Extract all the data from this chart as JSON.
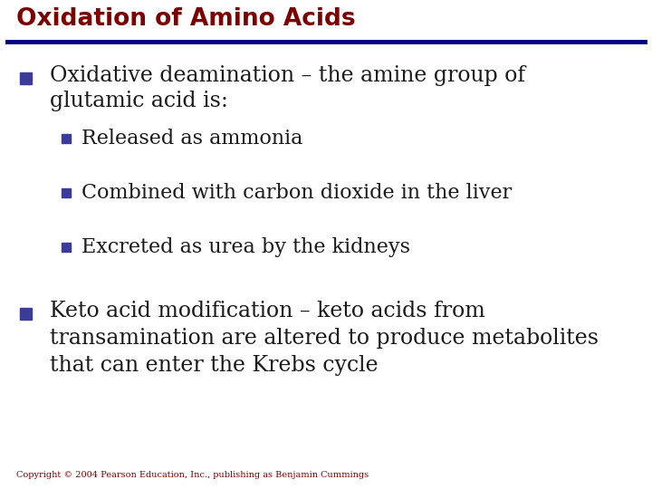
{
  "title": "Oxidation of Amino Acids",
  "title_color": "#7B0000",
  "title_fontsize": 19,
  "line_color": "#000080",
  "bg_color": "#ffffff",
  "bullet_color": "#3b3b9a",
  "text_color": "#1a1a1a",
  "copyright": "Copyright © 2004 Pearson Education, Inc., publishing as Benjamin Cummings",
  "copyright_color": "#7B0000",
  "bullet1_line1": "Oxidative deamination – the amine group of",
  "bullet1_line2": "glutamic acid is:",
  "sub_bullets": [
    "Released as ammonia",
    "Combined with carbon dioxide in the liver",
    "Excreted as urea by the kidneys"
  ],
  "bullet2_line1": "Keto acid modification – keto acids from",
  "bullet2_line2": "transamination are altered to produce metabolites",
  "bullet2_line3": "that can enter the Krebs cycle",
  "main_fontsize": 17,
  "sub_fontsize": 16,
  "copy_fontsize": 7
}
